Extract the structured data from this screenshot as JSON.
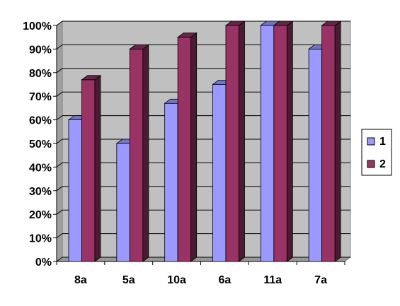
{
  "chart_data": {
    "type": "bar",
    "categories": [
      "8a",
      "5a",
      "10a",
      "6a",
      "11a",
      "7a"
    ],
    "series": [
      {
        "name": "1",
        "values": [
          60,
          50,
          67,
          75,
          100,
          90
        ]
      },
      {
        "name": "2",
        "values": [
          77,
          90,
          95,
          100,
          100,
          100
        ]
      }
    ],
    "title": "",
    "xlabel": "",
    "ylabel": "",
    "ylim": [
      0,
      100
    ],
    "y_ticks": [
      "0%",
      "10%",
      "20%",
      "30%",
      "40%",
      "50%",
      "60%",
      "70%",
      "80%",
      "90%",
      "100%"
    ],
    "grid": true,
    "legend_position": "right",
    "style": "3d-clustered-column"
  },
  "colors": {
    "series_1_front": "#9999ff",
    "series_1_side": "#5e5eaa",
    "series_1_top": "#7373cc",
    "series_2_front": "#993366",
    "series_2_side": "#4d1a33",
    "series_2_top": "#6b2447",
    "plot_wall": "#c0c0c0",
    "plot_floor": "#999999",
    "gridline": "#000000"
  }
}
